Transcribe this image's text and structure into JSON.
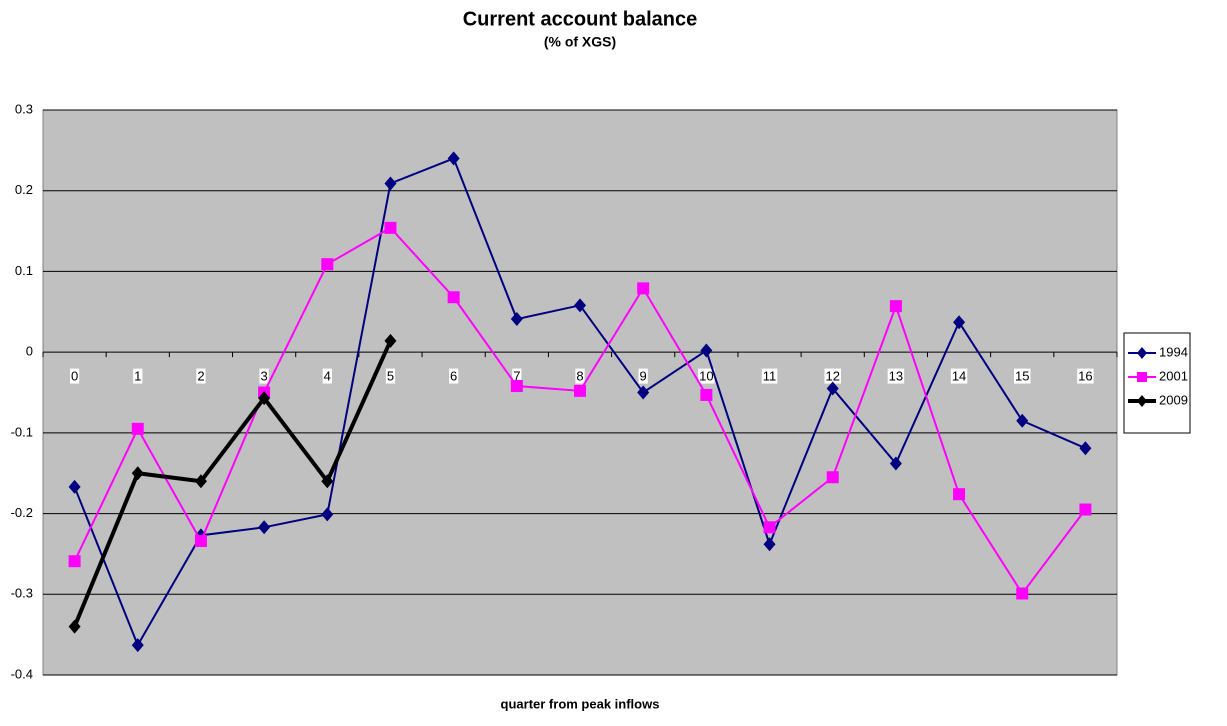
{
  "chart_data": {
    "type": "line",
    "title": "Current account balance",
    "subtitle": "(% of XGS)",
    "x_label": "quarter from peak inflows",
    "categories": [
      "0",
      "1",
      "2",
      "3",
      "4",
      "5",
      "6",
      "7",
      "8",
      "9",
      "10",
      "11",
      "12",
      "13",
      "14",
      "15",
      "16"
    ],
    "series": [
      {
        "name": "1994",
        "color": "#000080",
        "marker": "diamond",
        "values": [
          -0.167,
          -0.363,
          -0.227,
          -0.217,
          -0.201,
          0.209,
          0.24,
          0.041,
          0.058,
          -0.05,
          0.002,
          -0.238,
          -0.045,
          -0.138,
          0.037,
          -0.085,
          -0.119
        ]
      },
      {
        "name": "2001",
        "color": "#ff00ff",
        "marker": "square",
        "values": [
          -0.259,
          -0.095,
          -0.234,
          -0.05,
          0.109,
          0.154,
          0.068,
          -0.042,
          -0.048,
          0.079,
          -0.053,
          -0.217,
          -0.155,
          0.057,
          -0.176,
          -0.299,
          -0.195
        ]
      },
      {
        "name": "2009",
        "color": "#000000",
        "marker": "diamond",
        "values": [
          -0.34,
          -0.15,
          -0.16,
          -0.057,
          -0.16,
          0.014,
          null,
          null,
          null,
          null,
          null,
          null,
          null,
          null,
          null,
          null,
          null
        ]
      }
    ],
    "ylim": [
      -0.4,
      0.3
    ],
    "yticks": [
      -0.4,
      -0.3,
      -0.2,
      -0.1,
      0,
      0.1,
      0.2,
      0.3
    ],
    "grid": true,
    "legend": "right"
  }
}
